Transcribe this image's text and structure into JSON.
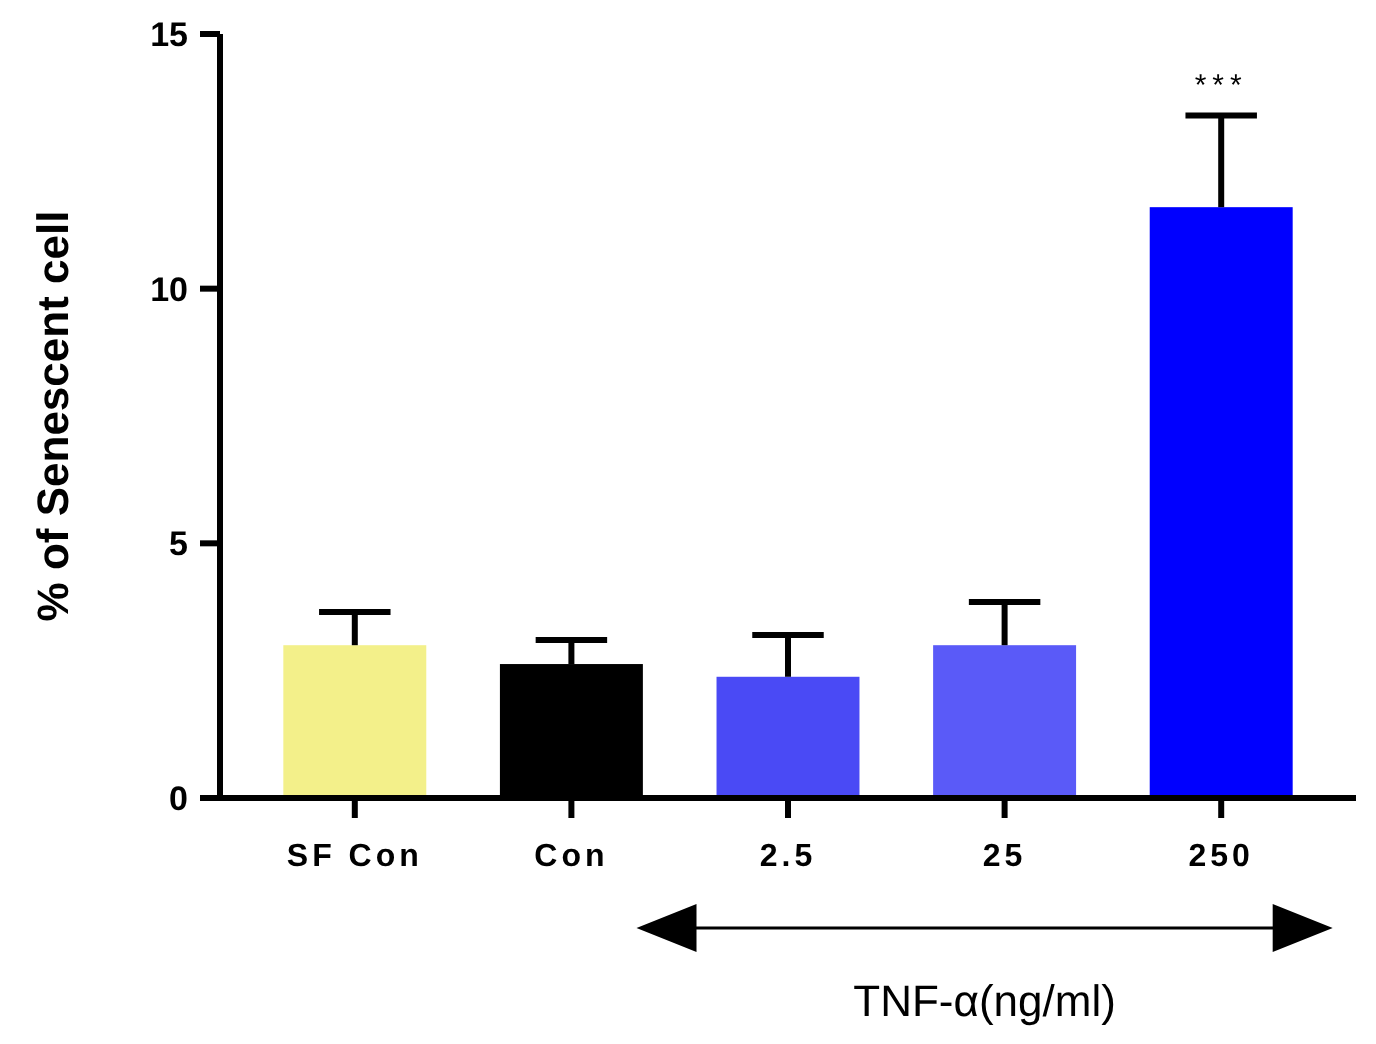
{
  "chart_data": {
    "type": "bar",
    "ylabel": "% of Senescent cell",
    "xlabel": "TNF-α(ng/ml)",
    "categories": [
      "SF Con",
      "Con",
      "2.5",
      "25",
      "250"
    ],
    "values": [
      3.0,
      2.63,
      2.38,
      3.0,
      11.6
    ],
    "errors": [
      [
        3.0,
        3.65
      ],
      [
        2.63,
        3.1
      ],
      [
        2.38,
        3.2
      ],
      [
        3.0,
        3.85
      ],
      [
        11.6,
        13.4
      ]
    ],
    "colors": [
      "#f3f08a",
      "#000000",
      "#4a4af5",
      "#5a5af8",
      "#0000ff"
    ],
    "ylim": [
      0,
      15
    ],
    "yticks": [
      0,
      5,
      10,
      15
    ],
    "grid": false,
    "annotations": [
      {
        "text": "***",
        "x": "250",
        "y": 13.4
      }
    ]
  }
}
